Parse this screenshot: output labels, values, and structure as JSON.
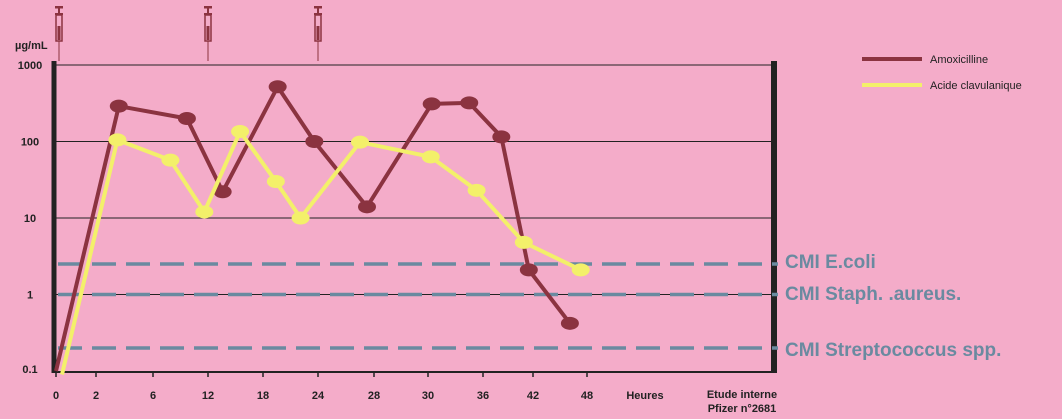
{
  "chart_data": {
    "type": "line",
    "ylabel": "µg/mL",
    "xlabel": "Heures",
    "yscale": "log",
    "ylim": [
      0.1,
      1000
    ],
    "xlim": [
      0,
      52
    ],
    "yticks": [
      0.1,
      1,
      10,
      100,
      1000
    ],
    "ytick_labels": [
      "0.1",
      "1",
      "10",
      "100",
      "1000"
    ],
    "xticks": [
      0,
      2,
      6,
      12,
      18,
      24,
      28,
      30,
      36,
      42,
      48
    ],
    "xtick_labels": [
      "0",
      "2",
      "6",
      "12",
      "18",
      "24",
      "28",
      "30",
      "36",
      "42",
      "48"
    ],
    "grid": "horizontal",
    "legend": "top-right",
    "series": [
      {
        "name": "Amoxicilline",
        "color": "#8b3340",
        "x": [
          0,
          3.6,
          9.7,
          13.6,
          19.6,
          23.6,
          27.5,
          30.4,
          34.5,
          38.2,
          41.5,
          46.1,
          50.4
        ],
        "y": [
          0.1,
          290,
          200,
          22,
          520,
          100,
          14,
          310,
          320,
          115,
          2.1,
          0.42,
          null
        ]
      },
      {
        "name": "Acide clavulanique",
        "color": "#f3f06a",
        "x": [
          0.3,
          3.5,
          7.9,
          11.6,
          15.5,
          19.4,
          22.1,
          27.0,
          30.3,
          35.3,
          40.9,
          47.3,
          51.5
        ],
        "y": [
          0.09,
          105,
          57,
          12,
          135,
          30,
          10,
          98,
          63,
          23,
          4.8,
          2.1,
          null
        ]
      }
    ],
    "reference_lines": [
      {
        "label": "CMI E.coli",
        "y": 2.5,
        "color": "#6a8aa0"
      },
      {
        "label": "CMI Staph. .aureus.",
        "y": 1,
        "color": "#6a8aa0"
      },
      {
        "label": "CMI Streptococcus spp.",
        "y": 0.2,
        "color": "#6a8aa0"
      }
    ],
    "dose_times": [
      0,
      12,
      24
    ],
    "note": [
      "Etude interne",
      "Pfizer n°2681"
    ]
  }
}
